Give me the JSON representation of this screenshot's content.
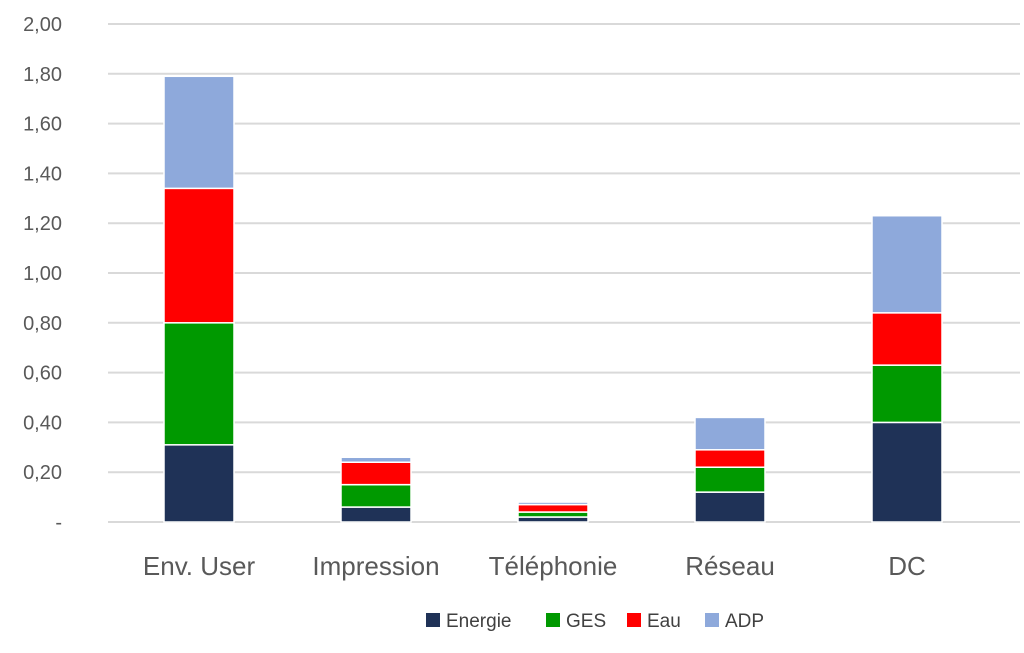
{
  "chart_data": {
    "type": "bar",
    "stacked": true,
    "categories": [
      "Env. User",
      "Impression",
      "Téléphonie",
      "Réseau",
      "DC"
    ],
    "series": [
      {
        "name": "Energie",
        "color": "#1f3257",
        "values": [
          0.31,
          0.06,
          0.02,
          0.12,
          0.4
        ]
      },
      {
        "name": "GES",
        "color": "#009900",
        "values": [
          0.49,
          0.09,
          0.02,
          0.1,
          0.23
        ]
      },
      {
        "name": "Eau",
        "color": "#ff0000",
        "values": [
          0.54,
          0.09,
          0.03,
          0.07,
          0.21
        ]
      },
      {
        "name": "ADP",
        "color": "#8ea9db",
        "values": [
          0.45,
          0.02,
          0.01,
          0.13,
          0.39
        ]
      }
    ],
    "yticks": [
      "-",
      "0,20",
      "0,40",
      "0,60",
      "0,80",
      "1,00",
      "1,20",
      "1,40",
      "1,60",
      "1,80",
      "2,00"
    ],
    "ylim": [
      0,
      2.0
    ],
    "grid": true,
    "legend_position": "bottom-center",
    "title": "",
    "xlabel": "",
    "ylabel": ""
  }
}
